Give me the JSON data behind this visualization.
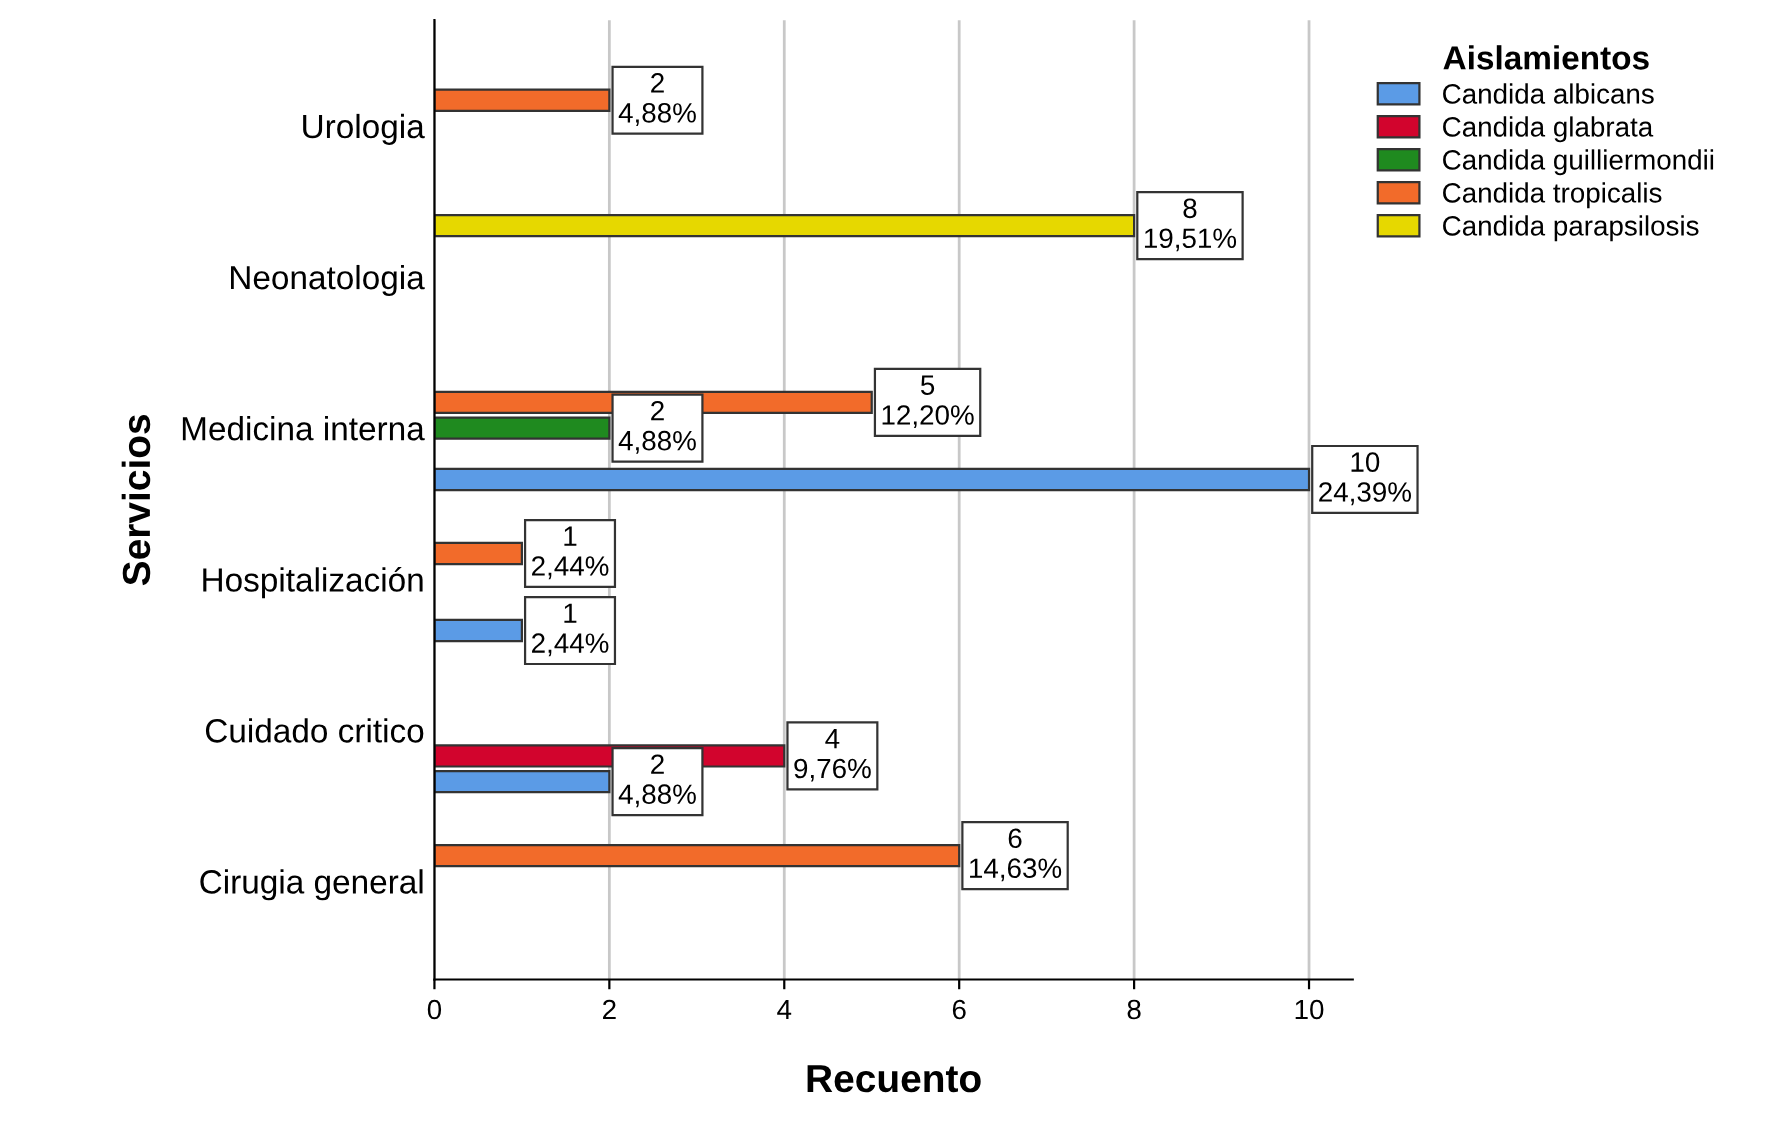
{
  "chart_data": {
    "type": "bar",
    "orientation": "horizontal",
    "xlabel": "Recuento",
    "ylabel": "Servicios",
    "legend_title": "Aislamientos",
    "legend": "top right",
    "grid": "x",
    "categories": [
      "Urologia",
      "Neonatologia",
      "Medicina interna",
      "Hospitalización",
      "Cuidado critico",
      "Cirugia general"
    ],
    "series": [
      {
        "name": "Candida albicans",
        "color": "#5b9be6",
        "values": [
          null,
          null,
          10,
          1,
          2,
          null
        ],
        "value_labels": [
          null,
          null,
          "10\n24,39%",
          "1\n2,44%",
          "2\n4,88%",
          null
        ]
      },
      {
        "name": "Candida glabrata",
        "color": "#d2042d",
        "values": [
          null,
          null,
          null,
          null,
          4,
          null
        ],
        "value_labels": [
          null,
          null,
          null,
          null,
          "4\n9,76%",
          null
        ]
      },
      {
        "name": "Candida guilliermondii",
        "color": "#1f8a1f",
        "values": [
          null,
          null,
          2,
          null,
          null,
          null
        ],
        "value_labels": [
          null,
          null,
          "2\n4,88%",
          null,
          null,
          null
        ]
      },
      {
        "name": "Candida tropicalis",
        "color": "#f26b2a",
        "values": [
          2,
          null,
          5,
          1,
          null,
          6
        ],
        "value_labels": [
          "2\n4,88%",
          null,
          "5\n12,20%",
          "1\n2,44%",
          null,
          "6\n14,63%"
        ]
      },
      {
        "name": "Candida parapsilosis",
        "color": "#e6d800",
        "values": [
          null,
          8,
          null,
          null,
          null,
          null
        ],
        "value_labels": [
          null,
          "8\n19,51%",
          null,
          null,
          null,
          null
        ]
      }
    ],
    "xlim": [
      0,
      10.5
    ],
    "xticks": [
      0,
      2,
      4,
      6,
      8,
      10
    ]
  }
}
